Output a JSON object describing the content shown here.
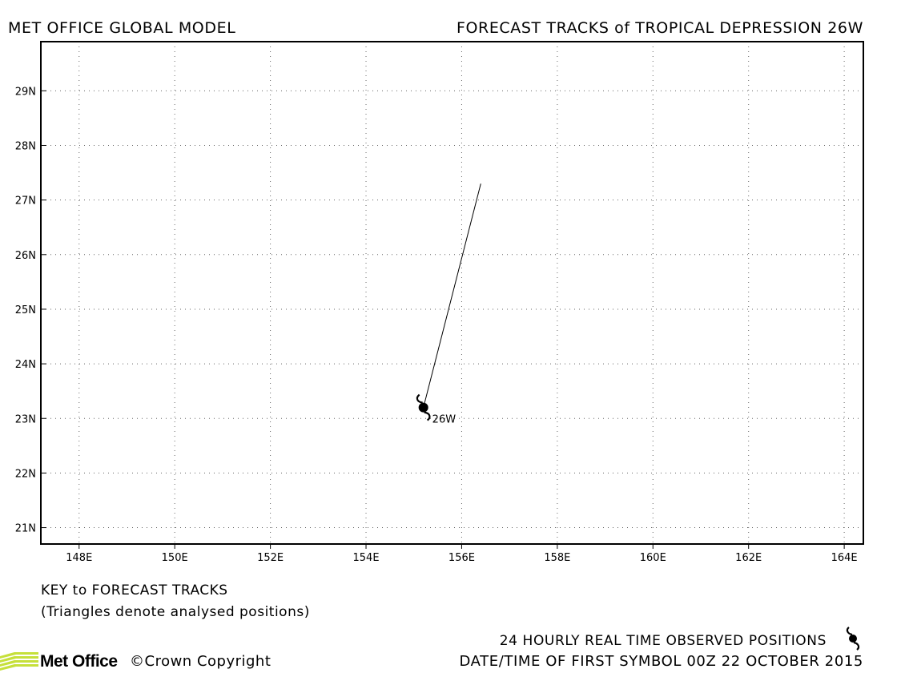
{
  "header": {
    "left_title": "MET OFFICE GLOBAL MODEL",
    "right_title": "FORECAST TRACKS of TROPICAL DEPRESSION 26W"
  },
  "map": {
    "lon_range": [
      147.2,
      164.4
    ],
    "lat_range": [
      20.7,
      29.9
    ],
    "lon_ticks": [
      "148E",
      "150E",
      "152E",
      "154E",
      "156E",
      "158E",
      "160E",
      "162E",
      "164E"
    ],
    "lon_values": [
      148,
      150,
      152,
      154,
      156,
      158,
      160,
      162,
      164
    ],
    "lat_ticks": [
      "21N",
      "22N",
      "23N",
      "24N",
      "25N",
      "26N",
      "27N",
      "28N",
      "29N"
    ],
    "lat_values": [
      21,
      22,
      23,
      24,
      25,
      26,
      27,
      28,
      29
    ],
    "grid": "dotted",
    "track": {
      "storm_label": "26W",
      "points": [
        {
          "lon": 155.2,
          "lat": 23.2
        },
        {
          "lon": 156.4,
          "lat": 27.3
        }
      ],
      "observed": [
        {
          "lon": 155.2,
          "lat": 23.2
        }
      ]
    }
  },
  "key": {
    "title": "KEY to FORECAST TRACKS",
    "subtitle": "(Triangles denote analysed positions)"
  },
  "footer": {
    "observed_label": "24 HOURLY REAL TIME OBSERVED POSITIONS",
    "observed_icon": "tropical-cyclone-icon",
    "date_line": "DATE/TIME OF FIRST SYMBOL 00Z 22 OCTOBER 2015",
    "logo_text": "Met Office",
    "copyright": "©Crown Copyright",
    "logo_color": "#c6e03a"
  }
}
